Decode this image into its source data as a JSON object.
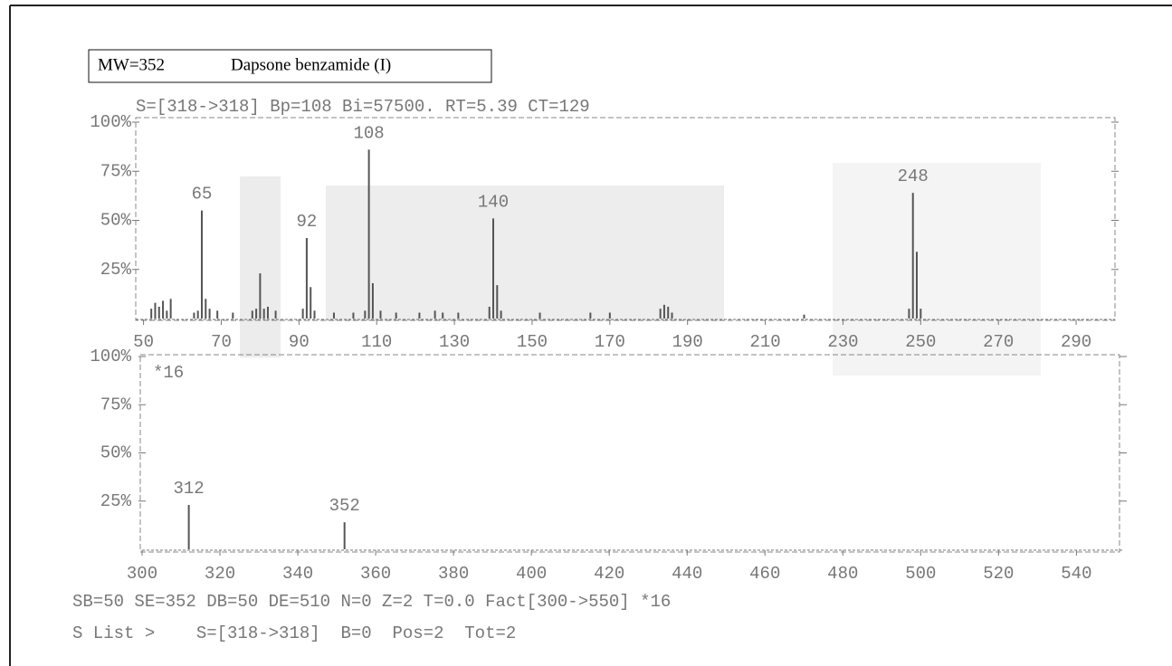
{
  "header": {
    "title": "MW=352",
    "compound": "Dapsone benzamide (I)",
    "scan_info": "S=[318->318] Bp=108 Bi=57500. RT=5.39 CT=129"
  },
  "chart_data": [
    {
      "type": "bar",
      "color": "#555555",
      "x": [
        52,
        53,
        54,
        55,
        56,
        57,
        63,
        64,
        65,
        66,
        67,
        69,
        73,
        78,
        79,
        80,
        81,
        82,
        84,
        91,
        92,
        93,
        94,
        99,
        104,
        107,
        108,
        109,
        111,
        115,
        121,
        125,
        127,
        131,
        139,
        140,
        141,
        142,
        152,
        165,
        170,
        183,
        184,
        185,
        186,
        220,
        247,
        248,
        249,
        250
      ],
      "values": [
        5,
        8,
        6,
        9,
        4,
        10,
        3,
        4,
        55,
        10,
        5,
        4,
        3,
        4,
        5,
        23,
        5,
        6,
        4,
        5,
        41,
        16,
        4,
        3,
        3,
        4,
        86,
        18,
        4,
        3,
        3,
        4,
        3,
        3,
        6,
        51,
        17,
        4,
        3,
        3,
        3,
        5,
        7,
        6,
        3,
        2,
        5,
        64,
        34,
        5
      ],
      "peak_labels": [
        65,
        92,
        108,
        140,
        248
      ],
      "xlim": [
        48,
        300
      ],
      "xticks": [
        50,
        70,
        90,
        110,
        130,
        150,
        170,
        190,
        210,
        230,
        250,
        270,
        290
      ],
      "ylim": [
        0,
        100
      ],
      "yticks": [
        {
          "value": 25,
          "label": "25%"
        },
        {
          "value": 50,
          "label": "50%"
        },
        {
          "value": 75,
          "label": "75%"
        },
        {
          "value": 100,
          "label": "100%"
        }
      ]
    },
    {
      "type": "bar",
      "color": "#555555",
      "x": [
        312,
        352
      ],
      "values": [
        23,
        14
      ],
      "peak_labels": [
        312,
        352
      ],
      "annotation": "*16",
      "xlim": [
        300,
        552
      ],
      "xticks": [
        300,
        320,
        340,
        360,
        380,
        400,
        420,
        440,
        460,
        480,
        500,
        520,
        540
      ],
      "ylim": [
        0,
        100
      ],
      "yticks": [
        {
          "value": 25,
          "label": "25%"
        },
        {
          "value": 50,
          "label": "50%"
        },
        {
          "value": 75,
          "label": "75%"
        },
        {
          "value": 100,
          "label": "100%"
        }
      ]
    }
  ],
  "footer": {
    "line1": "SB=50 SE=352 DB=50 DE=510 N=0 Z=2 T=0.0 Fact[300->550] *16",
    "line2": "S List >    S=[318->318]  B=0  Pos=2  Tot=2"
  }
}
